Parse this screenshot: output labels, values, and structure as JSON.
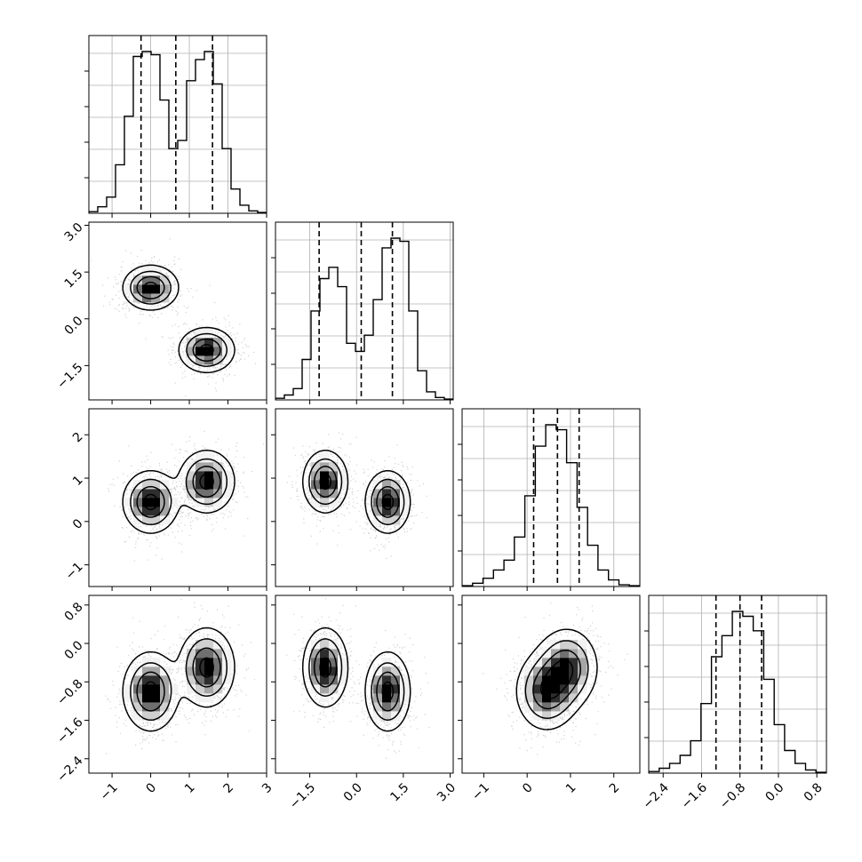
{
  "figure": {
    "type": "corner-plot"
  },
  "chart_data": {
    "type": "corner",
    "n_params": 4,
    "grid": true,
    "colors": {
      "line": "#000000",
      "points": "#7f7f7f",
      "grid": "#b0b0b0",
      "density": [
        "#f2f2f2",
        "#cfcfcf",
        "#a6a6a6",
        "#707070",
        "#2e2e2e",
        "#000000"
      ]
    },
    "params": [
      {
        "range": [
          -1.6,
          3.0
        ],
        "ticks": [
          "−1",
          "0",
          "1",
          "2",
          "3"
        ],
        "tick_values": [
          -1,
          0,
          1,
          2,
          3
        ],
        "quantiles": [
          -0.25,
          0.65,
          1.6
        ],
        "hist": [
          0.01,
          0.04,
          0.1,
          0.3,
          0.6,
          0.97,
          1.0,
          0.98,
          0.7,
          0.4,
          0.45,
          0.82,
          0.95,
          1.0,
          0.8,
          0.4,
          0.15,
          0.05,
          0.015,
          0.005
        ]
      },
      {
        "range": [
          -2.6,
          3.1
        ],
        "ticks": [
          "−1.5",
          "0.0",
          "1.5",
          "3.0"
        ],
        "tick_values": [
          -1.5,
          0.0,
          1.5,
          3.0
        ],
        "quantiles": [
          -1.2,
          0.15,
          1.15
        ],
        "hist": [
          0.01,
          0.03,
          0.07,
          0.25,
          0.55,
          0.75,
          0.82,
          0.7,
          0.35,
          0.3,
          0.4,
          0.62,
          0.94,
          1.0,
          0.98,
          0.55,
          0.18,
          0.05,
          0.015,
          0.005
        ]
      },
      {
        "range": [
          -1.5,
          2.6
        ],
        "ticks": [
          "−1",
          "0",
          "1",
          "2"
        ],
        "tick_values": [
          -1,
          0,
          1,
          2
        ],
        "quantiles": [
          0.15,
          0.7,
          1.2
        ],
        "hist": [
          0.005,
          0.02,
          0.05,
          0.1,
          0.16,
          0.3,
          0.55,
          0.85,
          0.98,
          0.95,
          0.75,
          0.48,
          0.25,
          0.1,
          0.04,
          0.01,
          0.005
        ]
      },
      {
        "range": [
          -2.7,
          1.0
        ],
        "ticks": [
          "−2.4",
          "−1.6",
          "−0.8",
          "0.0",
          "0.8"
        ],
        "tick_values": [
          -2.4,
          -1.6,
          -0.8,
          0.0,
          0.8
        ],
        "quantiles": [
          -1.3,
          -0.8,
          -0.35
        ],
        "hist": [
          0.01,
          0.03,
          0.06,
          0.11,
          0.2,
          0.43,
          0.72,
          0.85,
          1.0,
          0.97,
          0.88,
          0.58,
          0.3,
          0.14,
          0.06,
          0.02,
          0.005
        ]
      }
    ],
    "mixture": {
      "weights": [
        0.5,
        0.5
      ],
      "means": [
        [
          0.0,
          1.0,
          0.45,
          -1.0
        ],
        [
          1.45,
          -1.0,
          0.92,
          -0.5
        ]
      ],
      "sigmas": [
        [
          0.35,
          0.35,
          0.35,
          0.4
        ],
        [
          0.35,
          0.35,
          0.35,
          0.4
        ]
      ]
    }
  }
}
